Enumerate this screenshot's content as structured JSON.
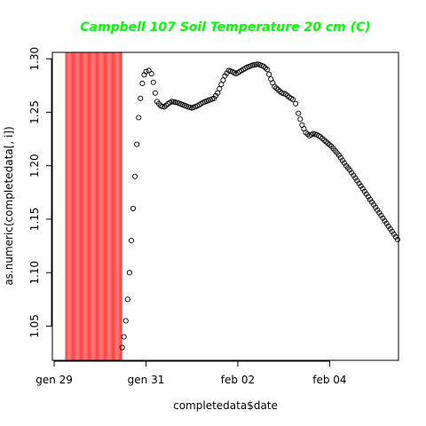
{
  "chart_data": {
    "type": "scatter",
    "title": "Campbell 107 Soil Temperature 20 cm (C)",
    "xlabel": "completedata$date",
    "ylabel": "as.numeric(completedata[, i])",
    "title_color": "#00ff00",
    "point_color": "#000000",
    "band_color": "#ff0000",
    "x_unit": "days",
    "xlim": [
      -0.02,
      3.75
    ],
    "ylim": [
      1.018,
      1.306
    ],
    "x_ticks": [
      {
        "value": 0,
        "label": "gen 29"
      },
      {
        "value": 1,
        "label": "gen 31"
      },
      {
        "value": 2,
        "label": "feb 02"
      },
      {
        "value": 3,
        "label": "feb 04"
      }
    ],
    "y_ticks": [
      {
        "value": 1.05,
        "label": "1.05"
      },
      {
        "value": 1.1,
        "label": "1.10"
      },
      {
        "value": 1.15,
        "label": "1.15"
      },
      {
        "value": 1.2,
        "label": "1.20"
      },
      {
        "value": 1.25,
        "label": "1.25"
      },
      {
        "value": 1.3,
        "label": "1.30"
      }
    ],
    "shaded_band": {
      "x_start": 0.12,
      "x_end": 0.74
    },
    "curve": [
      [
        0.74,
        1.03
      ],
      [
        0.76,
        1.04
      ],
      [
        0.78,
        1.055
      ],
      [
        0.8,
        1.075
      ],
      [
        0.82,
        1.1
      ],
      [
        0.84,
        1.13
      ],
      [
        0.86,
        1.16
      ],
      [
        0.88,
        1.19
      ],
      [
        0.9,
        1.22
      ],
      [
        0.92,
        1.245
      ],
      [
        0.94,
        1.263
      ],
      [
        0.96,
        1.277
      ],
      [
        0.98,
        1.285
      ],
      [
        1.0,
        1.288
      ],
      [
        1.03,
        1.289
      ],
      [
        1.06,
        1.286
      ],
      [
        1.08,
        1.278
      ],
      [
        1.1,
        1.268
      ],
      [
        1.12,
        1.26
      ],
      [
        1.16,
        1.256
      ],
      [
        1.2,
        1.255
      ],
      [
        1.24,
        1.258
      ],
      [
        1.28,
        1.26
      ],
      [
        1.34,
        1.259
      ],
      [
        1.4,
        1.257
      ],
      [
        1.46,
        1.255
      ],
      [
        1.5,
        1.254
      ],
      [
        1.56,
        1.256
      ],
      [
        1.62,
        1.259
      ],
      [
        1.68,
        1.261
      ],
      [
        1.74,
        1.263
      ],
      [
        1.78,
        1.268
      ],
      [
        1.82,
        1.276
      ],
      [
        1.86,
        1.284
      ],
      [
        1.9,
        1.289
      ],
      [
        1.94,
        1.288
      ],
      [
        1.98,
        1.286
      ],
      [
        2.04,
        1.289
      ],
      [
        2.1,
        1.292
      ],
      [
        2.16,
        1.294
      ],
      [
        2.22,
        1.295
      ],
      [
        2.28,
        1.293
      ],
      [
        2.32,
        1.29
      ],
      [
        2.36,
        1.281
      ],
      [
        2.4,
        1.274
      ],
      [
        2.44,
        1.271
      ],
      [
        2.48,
        1.268
      ],
      [
        2.52,
        1.267
      ],
      [
        2.56,
        1.264
      ],
      [
        2.6,
        1.262
      ],
      [
        2.63,
        1.258
      ],
      [
        2.66,
        1.249
      ],
      [
        2.7,
        1.238
      ],
      [
        2.74,
        1.231
      ],
      [
        2.78,
        1.228
      ],
      [
        2.82,
        1.23
      ],
      [
        2.86,
        1.229
      ],
      [
        2.9,
        1.227
      ],
      [
        2.94,
        1.224
      ],
      [
        2.98,
        1.221
      ],
      [
        3.02,
        1.218
      ],
      [
        3.06,
        1.214
      ],
      [
        3.1,
        1.21
      ],
      [
        3.14,
        1.205
      ],
      [
        3.18,
        1.2
      ],
      [
        3.22,
        1.196
      ],
      [
        3.26,
        1.191
      ],
      [
        3.3,
        1.186
      ],
      [
        3.34,
        1.181
      ],
      [
        3.38,
        1.176
      ],
      [
        3.42,
        1.171
      ],
      [
        3.46,
        1.166
      ],
      [
        3.5,
        1.161
      ],
      [
        3.54,
        1.156
      ],
      [
        3.58,
        1.151
      ],
      [
        3.62,
        1.146
      ],
      [
        3.66,
        1.141
      ],
      [
        3.7,
        1.136
      ],
      [
        3.74,
        1.131
      ],
      [
        3.78,
        1.126
      ]
    ]
  }
}
